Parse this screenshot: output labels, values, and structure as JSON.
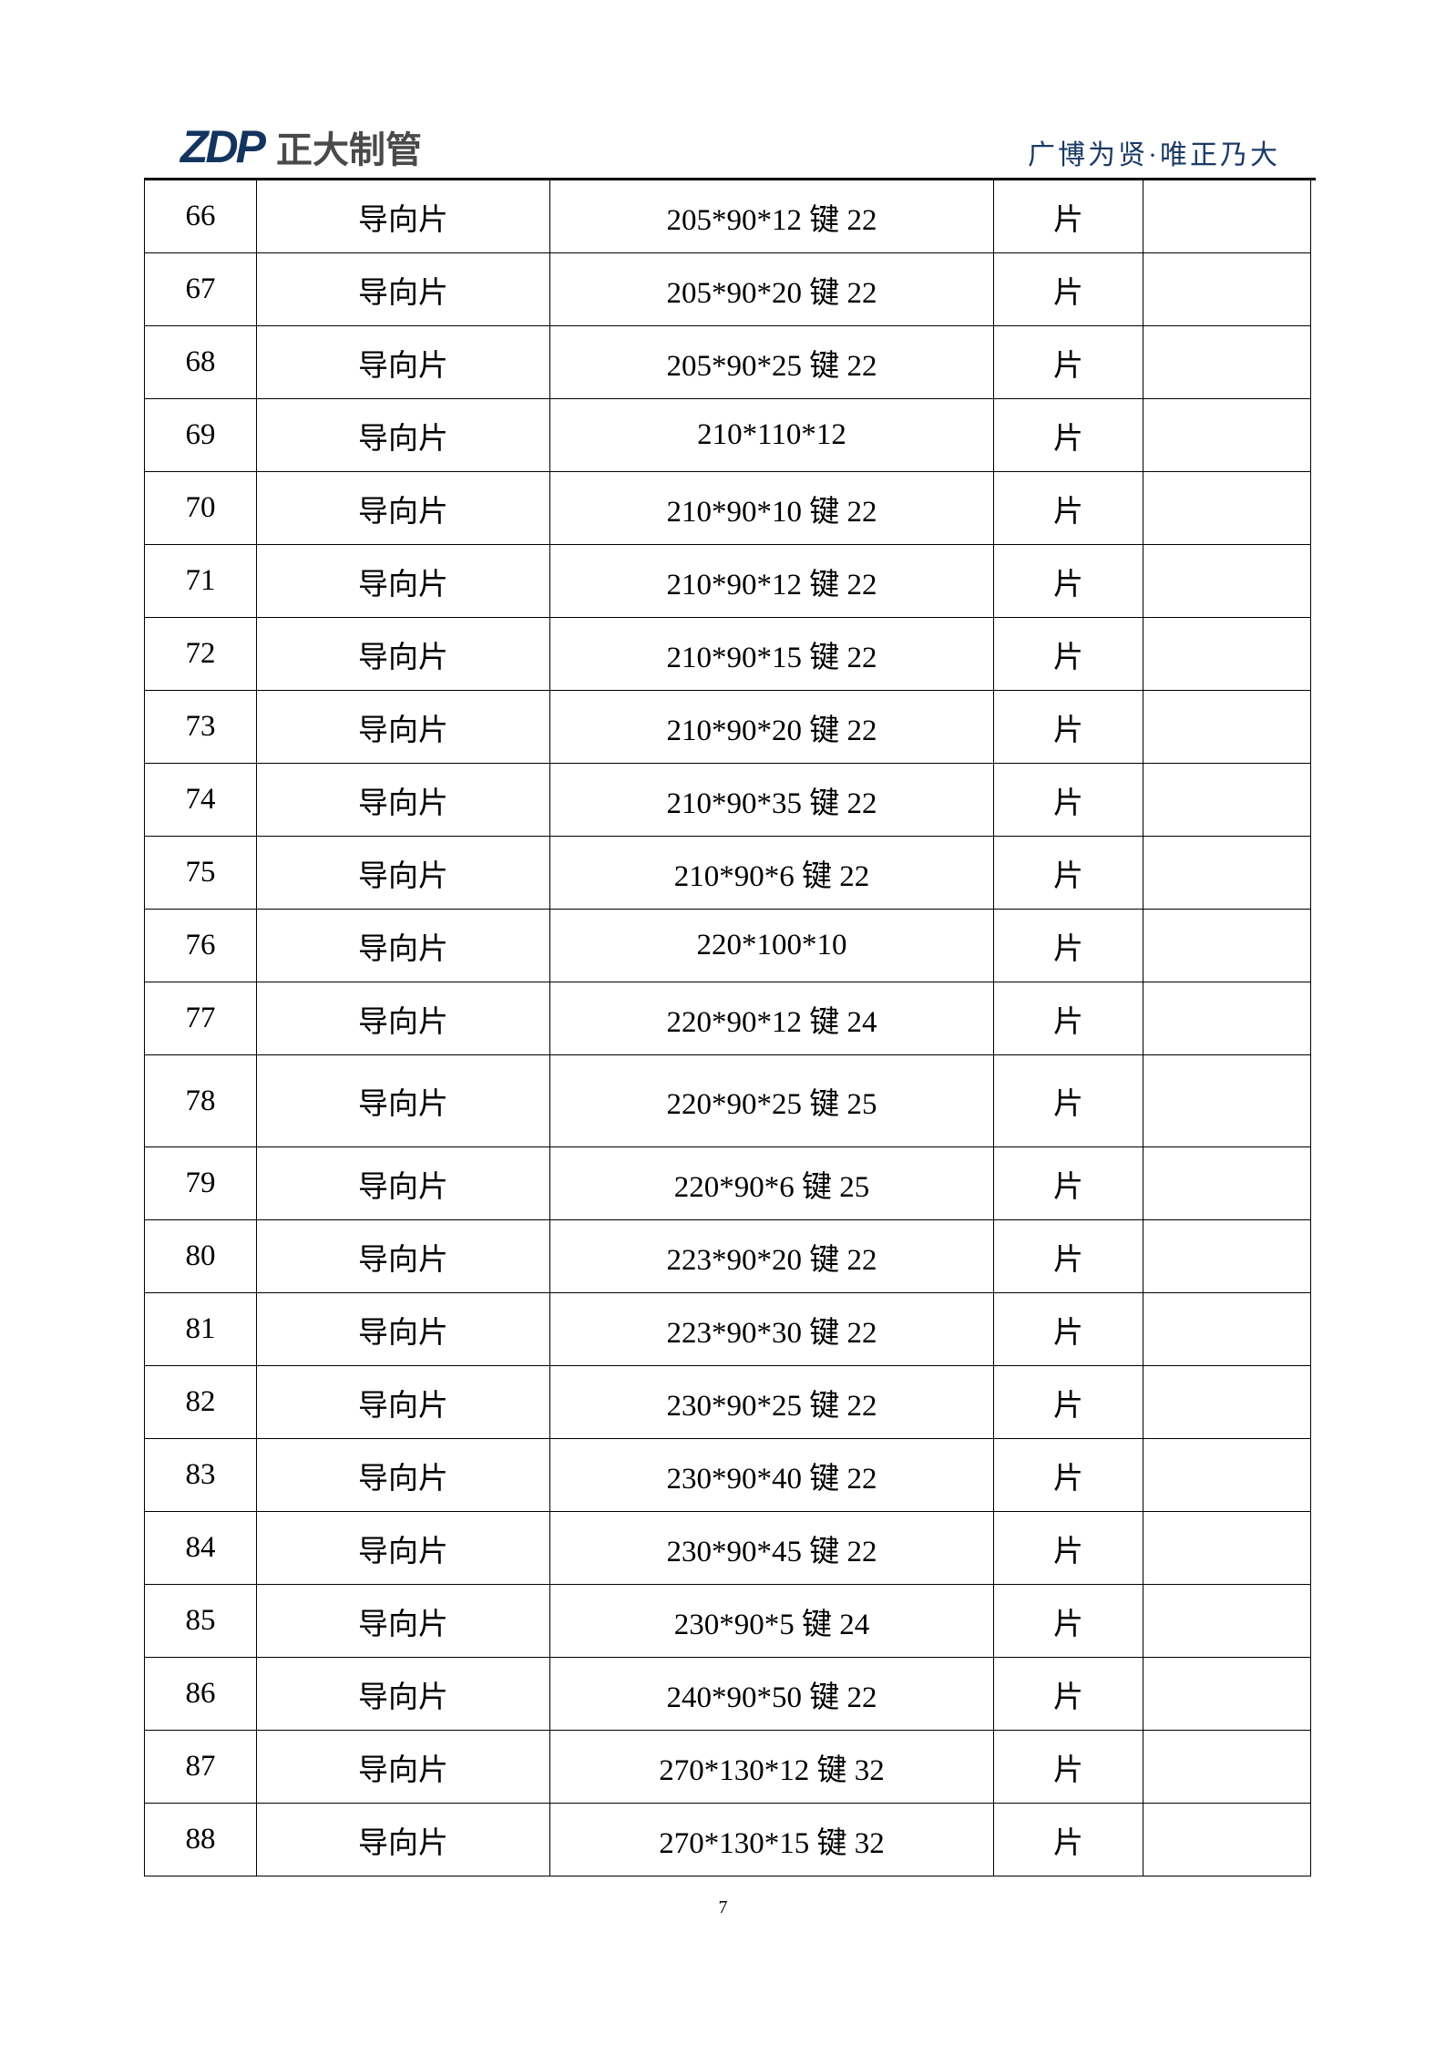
{
  "header": {
    "logo_mark": "ZDP",
    "logo_text": "正大制管",
    "slogan": "广博为贤·唯正乃大",
    "brand_color": "#13345f"
  },
  "table": {
    "rows": [
      [
        "66",
        "导向片",
        "205*90*12 键 22",
        "片",
        ""
      ],
      [
        "67",
        "导向片",
        "205*90*20 键 22",
        "片",
        ""
      ],
      [
        "68",
        "导向片",
        "205*90*25 键 22",
        "片",
        ""
      ],
      [
        "69",
        "导向片",
        "210*110*12",
        "片",
        ""
      ],
      [
        "70",
        "导向片",
        "210*90*10 键 22",
        "片",
        ""
      ],
      [
        "71",
        "导向片",
        "210*90*12 键 22",
        "片",
        ""
      ],
      [
        "72",
        "导向片",
        "210*90*15 键 22",
        "片",
        ""
      ],
      [
        "73",
        "导向片",
        "210*90*20 键 22",
        "片",
        ""
      ],
      [
        "74",
        "导向片",
        "210*90*35 键 22",
        "片",
        ""
      ],
      [
        "75",
        "导向片",
        "210*90*6 键 22",
        "片",
        ""
      ],
      [
        "76",
        "导向片",
        "220*100*10",
        "片",
        ""
      ],
      [
        "77",
        "导向片",
        "220*90*12 键 24",
        "片",
        ""
      ],
      [
        "78",
        "导向片",
        "220*90*25 键 25",
        "片",
        ""
      ],
      [
        "79",
        "导向片",
        "220*90*6 键 25",
        "片",
        ""
      ],
      [
        "80",
        "导向片",
        "223*90*20 键 22",
        "片",
        ""
      ],
      [
        "81",
        "导向片",
        "223*90*30 键 22",
        "片",
        ""
      ],
      [
        "82",
        "导向片",
        "230*90*25 键 22",
        "片",
        ""
      ],
      [
        "83",
        "导向片",
        "230*90*40 键 22",
        "片",
        ""
      ],
      [
        "84",
        "导向片",
        "230*90*45 键 22",
        "片",
        ""
      ],
      [
        "85",
        "导向片",
        "230*90*5 键 24",
        "片",
        ""
      ],
      [
        "86",
        "导向片",
        "240*90*50 键 22",
        "片",
        ""
      ],
      [
        "87",
        "导向片",
        "270*130*12 键 32",
        "片",
        ""
      ],
      [
        "88",
        "导向片",
        "270*130*15 键 32",
        "片",
        ""
      ]
    ]
  },
  "footer": {
    "page_number": "7"
  }
}
